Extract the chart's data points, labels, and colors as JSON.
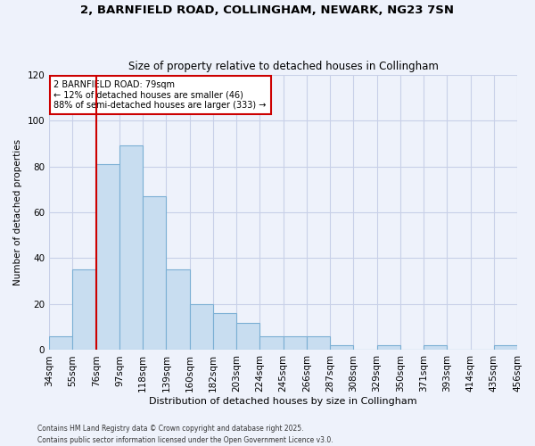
{
  "title": "2, BARNFIELD ROAD, COLLINGHAM, NEWARK, NG23 7SN",
  "subtitle": "Size of property relative to detached houses in Collingham",
  "xlabel": "Distribution of detached houses by size in Collingham",
  "ylabel": "Number of detached properties",
  "bar_values": [
    6,
    35,
    81,
    89,
    67,
    35,
    20,
    16,
    12,
    6,
    6,
    6,
    2,
    0,
    2,
    0,
    2,
    0,
    0,
    2
  ],
  "bin_edges": [
    34,
    55,
    76,
    97,
    118,
    139,
    160,
    182,
    203,
    224,
    245,
    266,
    287,
    308,
    329,
    350,
    371,
    393,
    414,
    435,
    456
  ],
  "bin_labels": [
    "34sqm",
    "55sqm",
    "76sqm",
    "97sqm",
    "118sqm",
    "139sqm",
    "160sqm",
    "182sqm",
    "203sqm",
    "224sqm",
    "245sqm",
    "266sqm",
    "287sqm",
    "308sqm",
    "329sqm",
    "350sqm",
    "371sqm",
    "393sqm",
    "414sqm",
    "435sqm",
    "456sqm"
  ],
  "bar_fill_color": "#c8ddf0",
  "bar_edge_color": "#7bafd4",
  "vline_color": "#cc0000",
  "vline_x_bin": 2,
  "ylim": [
    0,
    120
  ],
  "yticks": [
    0,
    20,
    40,
    60,
    80,
    100,
    120
  ],
  "annotation_title": "2 BARNFIELD ROAD: 79sqm",
  "annotation_line1": "← 12% of detached houses are smaller (46)",
  "annotation_line2": "88% of semi-detached houses are larger (333) →",
  "footnote1": "Contains HM Land Registry data © Crown copyright and database right 2025.",
  "footnote2": "Contains public sector information licensed under the Open Government Licence v3.0.",
  "bg_color": "#eef2fb",
  "plot_bg_color": "#eef2fb",
  "grid_color": "#c8d0e8"
}
